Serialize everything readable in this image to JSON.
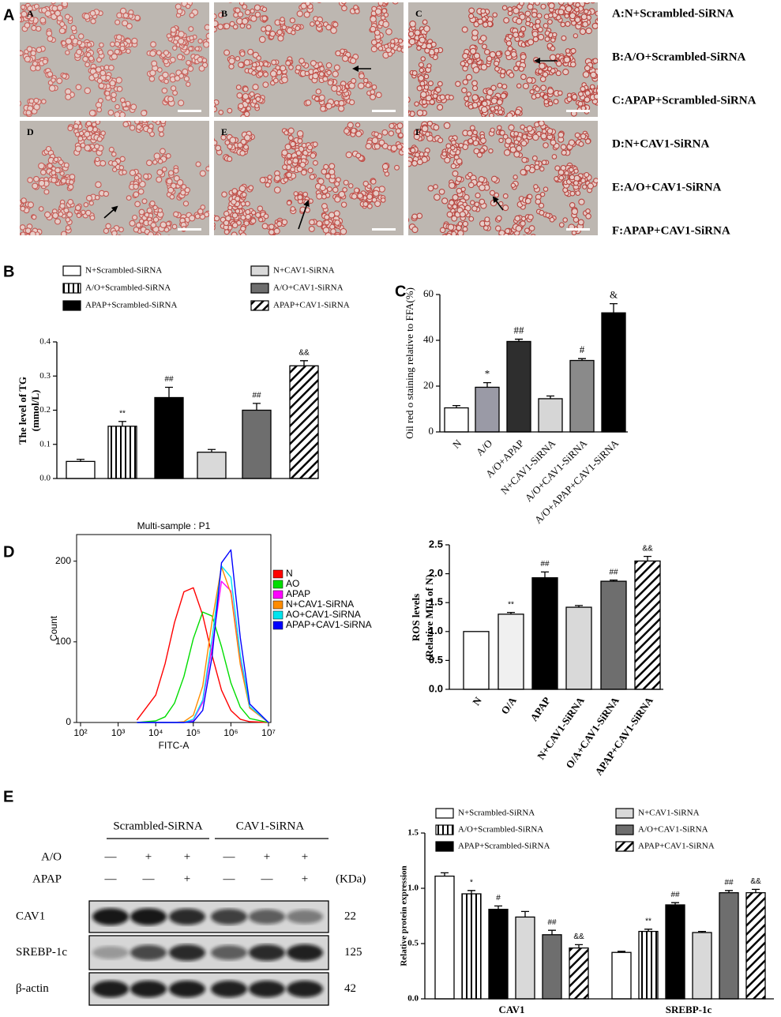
{
  "figure_a": {
    "label": "A",
    "images": [
      "A",
      "B",
      "C",
      "D",
      "E",
      "F"
    ],
    "legend": [
      "A:N+Scrambled-SiRNA",
      "B:A/O+Scrambled-SiRNA",
      "C:APAP+Scrambled-SiRNA",
      "D:N+CAV1-SiRNA",
      "E:A/O+CAV1-SiRNA",
      "F:APAP+CAV1-SiRNA"
    ]
  },
  "chart_data": [
    {
      "type": "bar",
      "panel": "B",
      "ylabel": [
        "The level of TG",
        "(mmol/L)"
      ],
      "series": [
        {
          "name": "N+Scrambled-SiRNA",
          "color": "#ffffff",
          "values": [
            0.05
          ],
          "errors": [
            0.006
          ],
          "annotations": [
            null
          ]
        },
        {
          "name": "A/O+Scrambled-SiRNA",
          "color": "#ffffff",
          "pattern": "vertical-stripes",
          "values": [
            0.153
          ],
          "errors": [
            0.014
          ],
          "annotations": [
            "**"
          ]
        },
        {
          "name": "APAP+Scrambled-SiRNA",
          "color": "#000000",
          "values": [
            0.237
          ],
          "errors": [
            0.03
          ],
          "annotations": [
            "##"
          ]
        },
        {
          "name": "N+CAV1-SiRNA",
          "color": "#d9d9d9",
          "values": [
            0.077
          ],
          "errors": [
            0.008
          ],
          "annotations": [
            null
          ]
        },
        {
          "name": "A/O+CAV1-SiRNA",
          "color": "#6e6e6e",
          "values": [
            0.2
          ],
          "errors": [
            0.02
          ],
          "annotations": [
            "##"
          ]
        },
        {
          "name": "APAP+CAV1-SiRNA",
          "color": "#ffffff",
          "pattern": "diagonal-hatch",
          "values": [
            0.33
          ],
          "errors": [
            0.015
          ],
          "annotations": [
            "&&"
          ]
        }
      ],
      "ylim": [
        0,
        0.4
      ],
      "yticks": [
        {
          "value": 0,
          "label": "0.0"
        },
        0.1,
        0.2,
        0.3,
        0.4
      ]
    },
    {
      "type": "bar",
      "panel": "C",
      "ylabel": "Oil red o staining relative to FFA(%)",
      "categories": [
        "N",
        "A/O",
        "A/O+APAP",
        "N+CAV1-SiRNA",
        "A/O+CAV1-SiRNA",
        "A/O+APAP+CAV1-SiRNA"
      ],
      "values": [
        10.5,
        19.5,
        39.5,
        14.5,
        31.2,
        52
      ],
      "errors": [
        1,
        2,
        1,
        1.2,
        0.8,
        4
      ],
      "annotations": [
        null,
        "*",
        "##",
        null,
        "#",
        "&"
      ],
      "colors": [
        "#ffffff",
        "#9a9aa6",
        "#2e2e2e",
        "#d6d6d6",
        "#8a8a8a",
        "#000000"
      ],
      "ylim": [
        0,
        60
      ],
      "yticks": [
        0,
        20,
        40,
        60
      ]
    },
    {
      "type": "line",
      "panel": "D",
      "title": "Multi-sample : P1",
      "xlabel": "FITC-A",
      "ylabel": "Count",
      "log_x": true,
      "x": [
        3162,
        10000,
        17783,
        31623,
        56234,
        100000,
        177828,
        316228,
        562341,
        1000000,
        1778279,
        3162278,
        10000000
      ],
      "series": [
        {
          "name": "N",
          "color": "#ff0000",
          "values": [
            3,
            34,
            73,
            124,
            162,
            167,
            133,
            83,
            40,
            15,
            4,
            1,
            0
          ]
        },
        {
          "name": "AO",
          "color": "#00dd00",
          "values": [
            0,
            2,
            7,
            24,
            57,
            104,
            137,
            132,
            94,
            49,
            19,
            5,
            0
          ]
        },
        {
          "name": "APAP",
          "color": "#ff00ff",
          "values": [
            0,
            0,
            0,
            0,
            0,
            3,
            25,
            94,
            175,
            163,
            76,
            18,
            0
          ]
        },
        {
          "name": "N+CAV1-SiRNA",
          "color": "#ff8c00",
          "values": [
            0,
            0,
            0,
            0,
            1,
            9,
            45,
            126,
            193,
            160,
            72,
            18,
            0
          ]
        },
        {
          "name": "AO+CAV1-SiRNA",
          "color": "#00e5ee",
          "values": [
            0,
            0,
            0,
            0,
            0,
            4,
            28,
            105,
            194,
            180,
            84,
            20,
            0
          ]
        },
        {
          "name": "APAP+CAV1-SiRNA",
          "color": "#0000ff",
          "values": [
            0,
            0,
            0,
            0,
            0,
            1,
            15,
            82,
            198,
            214,
            105,
            23,
            0
          ]
        }
      ],
      "xlim": [
        100,
        10000000
      ],
      "xticks": [
        {
          "value": 100,
          "label": "10²"
        },
        {
          "value": 1000,
          "label": "10³"
        },
        {
          "value": 10000,
          "label": "10⁴"
        },
        {
          "value": 100000,
          "label": "10⁵"
        },
        {
          "value": 1000000,
          "label": "10⁶"
        },
        {
          "value": 10000000,
          "label": "10⁷"
        }
      ],
      "ylim": [
        0,
        233
      ],
      "yticks": [
        0,
        100,
        200
      ]
    },
    {
      "type": "bar",
      "ylabel": [
        "ROS levels",
        "(Relative MFI of N)"
      ],
      "categories": [
        "N",
        "O/A",
        "APAP",
        "N+CAV1-SiRNA",
        "O/A+CAV1-SiRNA",
        "APAP+CAV1-SiRNA"
      ],
      "values": [
        1.0,
        1.3,
        1.93,
        1.42,
        1.87,
        2.22
      ],
      "errors": [
        0,
        0.03,
        0.1,
        0.03,
        0.02,
        0.08
      ],
      "annotations": [
        null,
        "**",
        "##",
        null,
        "##",
        "&&"
      ],
      "colors": [
        "#ffffff",
        "#f0f0f0",
        "#000000",
        "#d9d9d9",
        "#6e6e6e",
        "#ffffff"
      ],
      "patterns": [
        null,
        null,
        null,
        null,
        null,
        "diagonal-hatch"
      ],
      "ylim": [
        0,
        2.5
      ],
      "yticks": [
        {
          "value": 0,
          "label": "0.0"
        },
        0.5,
        {
          "value": 1,
          "label": "1.0"
        },
        1.5,
        {
          "value": 2,
          "label": "2.0"
        },
        2.5
      ]
    },
    {
      "type": "bar",
      "panel": "E",
      "ylabel": "Relative protein expression",
      "categories": [
        "CAV1",
        "SREBP-1c"
      ],
      "series": [
        {
          "name": "N+Scrambled-SiRNA",
          "color": "#ffffff",
          "values": [
            1.11,
            0.42
          ],
          "errors": [
            0.03,
            0.01
          ],
          "annotations": [
            null,
            null
          ]
        },
        {
          "name": "A/O+Scrambled-SiRNA",
          "color": "#ffffff",
          "pattern": "vertical-stripes",
          "values": [
            0.95,
            0.61
          ],
          "errors": [
            0.03,
            0.02
          ],
          "annotations": [
            "*",
            "**"
          ]
        },
        {
          "name": "APAP+Scrambled-SiRNA",
          "color": "#000000",
          "values": [
            0.81,
            0.85
          ],
          "errors": [
            0.03,
            0.02
          ],
          "annotations": [
            "#",
            "##"
          ]
        },
        {
          "name": "N+CAV1-SiRNA",
          "color": "#d9d9d9",
          "values": [
            0.74,
            0.6
          ],
          "errors": [
            0.05,
            0.01
          ],
          "annotations": [
            null,
            null
          ]
        },
        {
          "name": "A/O+CAV1-SiRNA",
          "color": "#6e6e6e",
          "values": [
            0.58,
            0.96
          ],
          "errors": [
            0.04,
            0.02
          ],
          "annotations": [
            "##",
            "##"
          ]
        },
        {
          "name": "APAP+CAV1-SiRNA",
          "color": "#ffffff",
          "pattern": "diagonal-hatch",
          "values": [
            0.46,
            0.96
          ],
          "errors": [
            0.03,
            0.03
          ],
          "annotations": [
            "&&",
            "&&"
          ]
        }
      ],
      "ylim": [
        0,
        1.5
      ],
      "yticks": [
        {
          "value": 0,
          "label": "0.0"
        },
        0.5,
        {
          "value": 1,
          "label": "1.0"
        },
        1.5
      ]
    }
  ],
  "blot": {
    "groups": [
      "Scrambled-SiRNA",
      "CAV1-SiRNA"
    ],
    "rows": [
      {
        "label": "A/O",
        "marks": [
          "—",
          "+",
          "+",
          "—",
          "+",
          "+"
        ]
      },
      {
        "label": "APAP",
        "marks": [
          "—",
          "—",
          "+",
          "—",
          "—",
          "+"
        ]
      }
    ],
    "unit": "(KDa)",
    "bands": [
      {
        "name": "CAV1",
        "kda": 22
      },
      {
        "name": "SREBP-1c",
        "kda": 125
      },
      {
        "name": "β-actin",
        "kda": 42
      }
    ]
  }
}
